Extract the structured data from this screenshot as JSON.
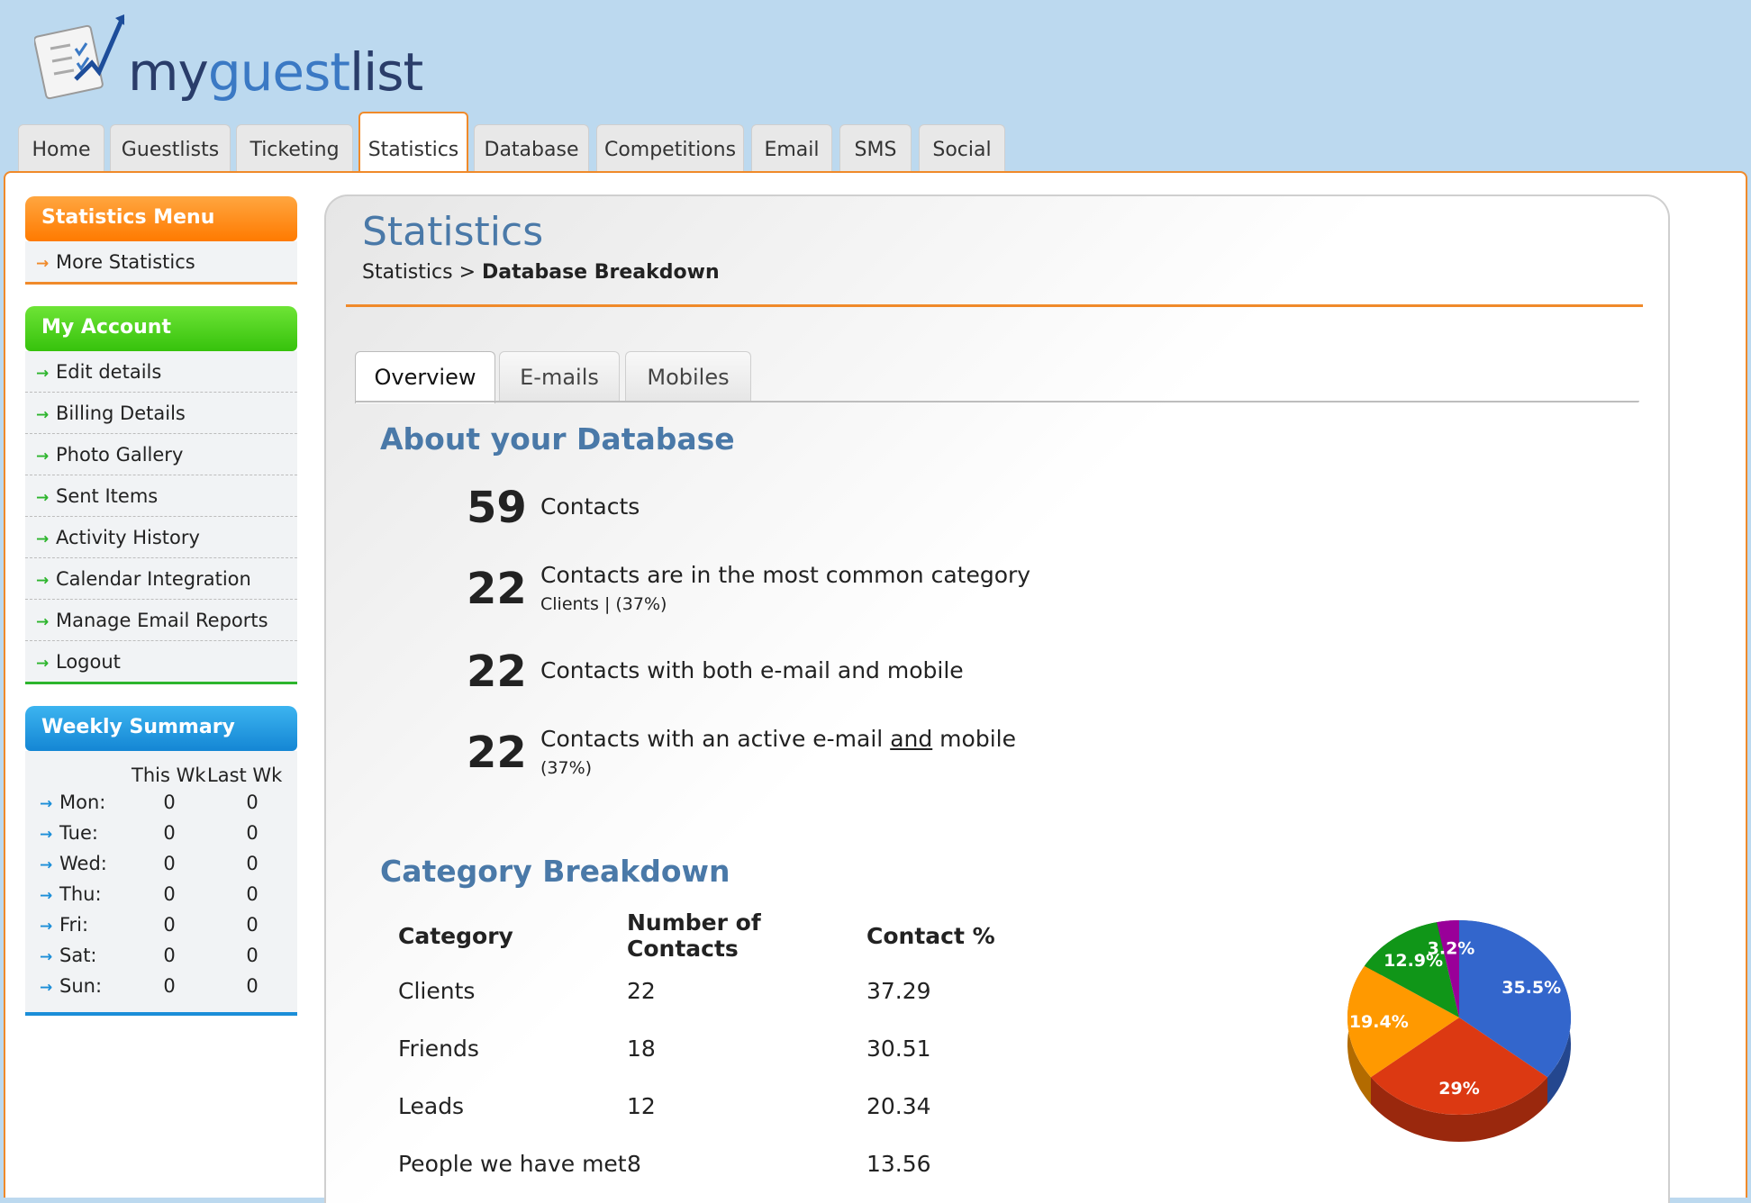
{
  "app": {
    "logo_text_part1": "my",
    "logo_text_part2": "guest",
    "logo_text_part3": "list"
  },
  "nav": {
    "tabs": [
      "Home",
      "Guestlists",
      "Ticketing",
      "Statistics",
      "Database",
      "Competitions",
      "Email",
      "SMS",
      "Social"
    ],
    "active": "Statistics"
  },
  "sidebar": {
    "stats_menu": {
      "title": "Statistics Menu",
      "items": [
        "More Statistics"
      ]
    },
    "account": {
      "title": "My Account",
      "items": [
        "Edit details",
        "Billing Details",
        "Photo Gallery",
        "Sent Items",
        "Activity History",
        "Calendar Integration",
        "Manage Email Reports",
        "Logout"
      ]
    },
    "weekly": {
      "title": "Weekly Summary",
      "col_this": "This Wk",
      "col_last": "Last Wk",
      "rows": [
        {
          "day": "Mon:",
          "this": "0",
          "last": "0"
        },
        {
          "day": "Tue:",
          "this": "0",
          "last": "0"
        },
        {
          "day": "Wed:",
          "this": "0",
          "last": "0"
        },
        {
          "day": "Thu:",
          "this": "0",
          "last": "0"
        },
        {
          "day": "Fri:",
          "this": "0",
          "last": "0"
        },
        {
          "day": "Sat:",
          "this": "0",
          "last": "0"
        },
        {
          "day": "Sun:",
          "this": "0",
          "last": "0"
        }
      ]
    }
  },
  "main": {
    "title": "Statistics",
    "breadcrumb_root": "Statistics",
    "breadcrumb_sep": ">",
    "breadcrumb_current": "Database Breakdown",
    "subtabs": [
      "Overview",
      "E-mails",
      "Mobiles"
    ],
    "about_title": "About your Database",
    "stats": [
      {
        "value": "59",
        "desc": "Contacts",
        "sub": ""
      },
      {
        "value": "22",
        "desc": "Contacts are in the most common category",
        "sub": "Clients | (37%)"
      },
      {
        "value": "22",
        "desc": "Contacts with both e-mail and mobile",
        "sub": ""
      },
      {
        "value": "22",
        "desc_pre": "Contacts with an active e-mail ",
        "desc_u": "and",
        "desc_post": " mobile",
        "sub": "(37%)"
      }
    ],
    "category_title": "Category Breakdown",
    "table": {
      "headers": [
        "Category",
        "Number of Contacts",
        "Contact %"
      ],
      "rows": [
        [
          "Clients",
          "22",
          "37.29"
        ],
        [
          "Friends",
          "18",
          "30.51"
        ],
        [
          "Leads",
          "12",
          "20.34"
        ],
        [
          "People we have met",
          "8",
          "13.56"
        ]
      ]
    }
  },
  "chart_data": {
    "type": "pie",
    "labels_shown": [
      "35.5%",
      "29%",
      "19.4%",
      "12.9%",
      "3.2%"
    ],
    "values": [
      35.5,
      29,
      19.4,
      12.9,
      3.2
    ],
    "colors": [
      "#3366cc",
      "#dc3912",
      "#ff9900",
      "#109618",
      "#990099"
    ]
  },
  "colors": {
    "accent": "#f08a2a",
    "title_blue": "#4a79a8"
  }
}
